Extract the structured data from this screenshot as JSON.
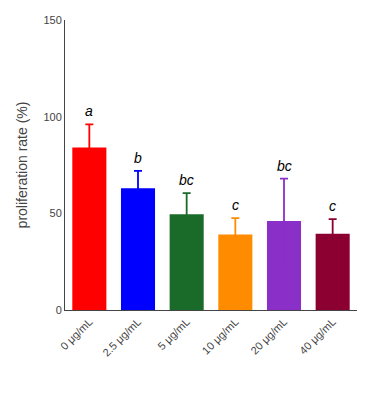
{
  "chart_data": {
    "type": "bar",
    "categories": [
      "0 μg/mL",
      "2.5 μg/mL",
      "5 μg/mL",
      "10 μg/mL",
      "20 μg/mL",
      "40 μg/mL"
    ],
    "values": [
      84.0,
      63.0,
      49.5,
      39.0,
      46.0,
      39.5
    ],
    "errors": [
      12.0,
      9.0,
      11.0,
      8.5,
      22.0,
      7.5
    ],
    "colors": [
      "#FF0000",
      "#0000FF",
      "#1A6B2A",
      "#FF8C00",
      "#8B2FC9",
      "#8B0030"
    ],
    "annotations": [
      "a",
      "b",
      "bc",
      "c",
      "bc",
      "c"
    ],
    "ylabel": "proliferation rate (%)",
    "ylim": [
      0,
      150
    ],
    "yticks": [
      0,
      50,
      100,
      150
    ],
    "grid": false
  }
}
